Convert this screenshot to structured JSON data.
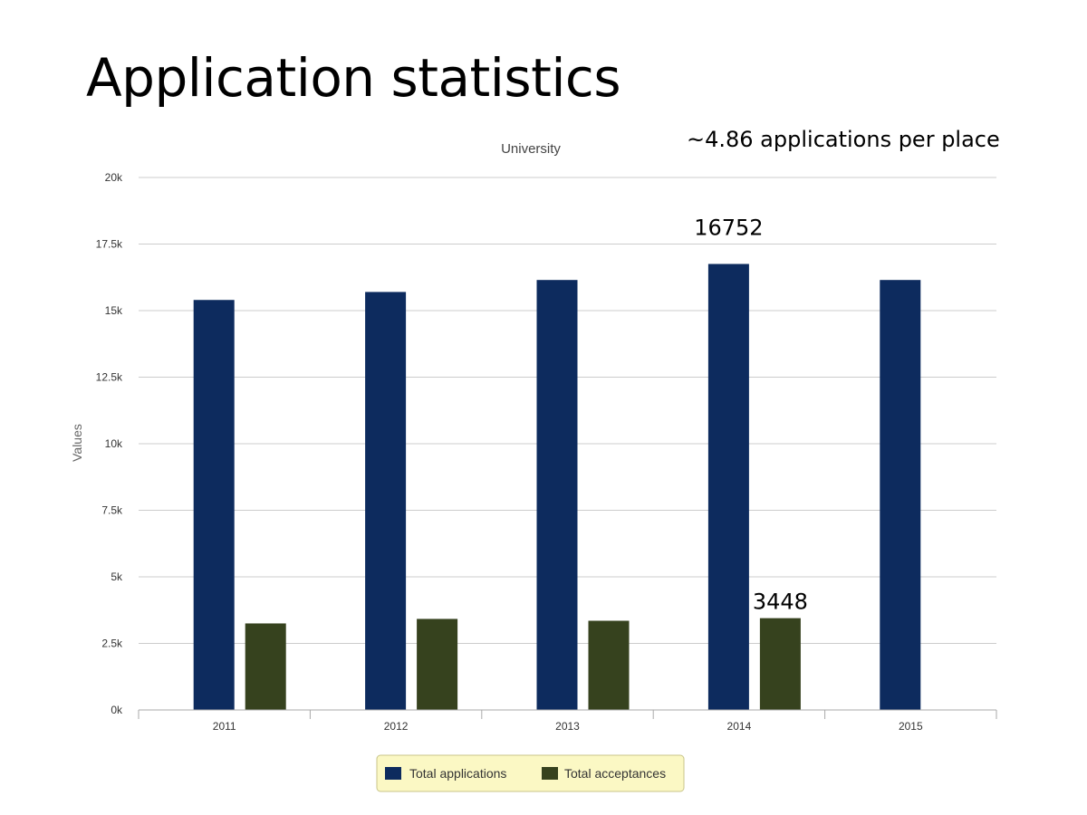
{
  "slide": {
    "title": "Application statistics",
    "annotation": "~4.86 applications per place"
  },
  "chart_data": {
    "type": "bar",
    "title": "University",
    "xlabel": "",
    "ylabel": "Values",
    "categories": [
      "2011",
      "2012",
      "2013",
      "2014",
      "2015"
    ],
    "ylim": [
      0,
      20000
    ],
    "yticks": [
      0,
      2500,
      5000,
      7500,
      10000,
      12500,
      15000,
      17500,
      20000
    ],
    "ytick_labels": [
      "0k",
      "2.5k",
      "5k",
      "7.5k",
      "10k",
      "12.5k",
      "15k",
      "17.5k",
      "20k"
    ],
    "grid": true,
    "legend_position": "bottom",
    "series": [
      {
        "name": "Total applications",
        "color": "#0d2b5e",
        "values": [
          15400,
          15700,
          16150,
          16752,
          16150
        ]
      },
      {
        "name": "Total acceptances",
        "color": "#36421e",
        "values": [
          3250,
          3420,
          3350,
          3448,
          null
        ]
      }
    ],
    "annotations": [
      {
        "series": 0,
        "category": "2014",
        "text": "16752"
      },
      {
        "series": 1,
        "category": "2014",
        "text": "3448"
      }
    ]
  }
}
